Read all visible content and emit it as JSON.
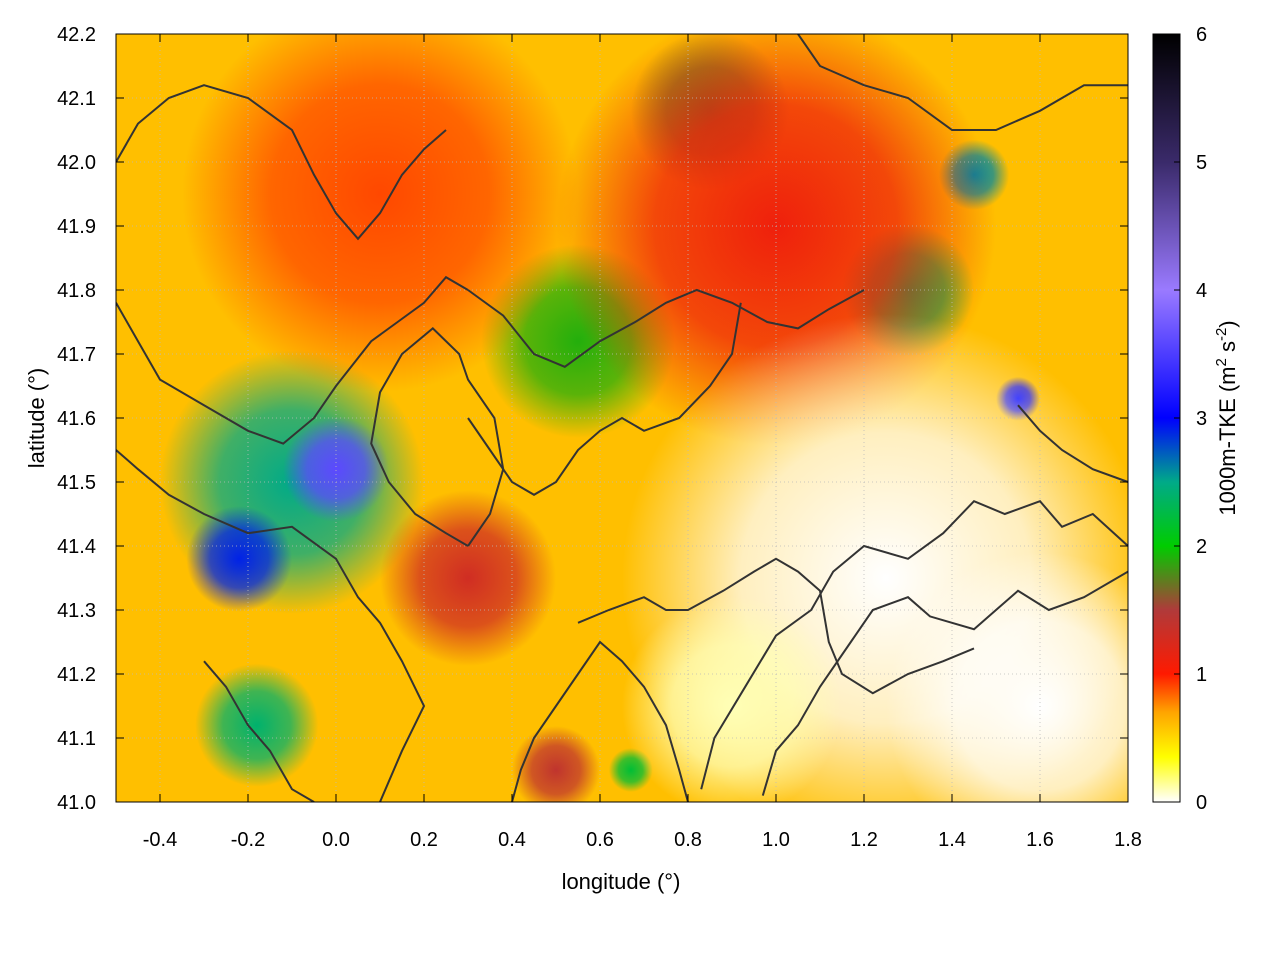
{
  "chart_data": {
    "type": "heatmap",
    "title": "",
    "xlabel": "longitude (°)",
    "ylabel": "latitude (°)",
    "xlim": [
      -0.5,
      1.8
    ],
    "ylim": [
      41.0,
      42.2
    ],
    "x_ticks": [
      -0.4,
      -0.2,
      0.0,
      0.2,
      0.4,
      0.6,
      0.8,
      1.0,
      1.2,
      1.4,
      1.6,
      1.8
    ],
    "x_tick_labels": [
      "-0.4",
      "-0.2",
      "0.0",
      "0.2",
      "0.4",
      "0.6",
      "0.8",
      "1.0",
      "1.2",
      "1.4",
      "1.6",
      "1.8"
    ],
    "y_ticks": [
      41.0,
      41.1,
      41.2,
      41.3,
      41.4,
      41.5,
      41.6,
      41.7,
      41.8,
      41.9,
      42.0,
      42.1,
      42.2
    ],
    "y_tick_labels": [
      "41.0",
      "41.1",
      "41.2",
      "41.3",
      "41.4",
      "41.5",
      "41.6",
      "41.7",
      "41.8",
      "41.9",
      "42.0",
      "42.1",
      "42.2"
    ],
    "grid": true,
    "colorbar": {
      "label": "1000m-TKE (m² s⁻²)",
      "label_main": "1000m-TKE (m",
      "label_sup1": "2",
      "label_mid": " s",
      "label_sup2": "-2",
      "label_end": ")",
      "range": [
        0,
        6
      ],
      "ticks": [
        0,
        1,
        2,
        3,
        4,
        5,
        6
      ],
      "tick_labels": [
        "0",
        "1",
        "2",
        "3",
        "4",
        "5",
        "6"
      ],
      "stops": [
        {
          "v": 0.0,
          "color": "#ffffff"
        },
        {
          "v": 0.35,
          "color": "#ffff00"
        },
        {
          "v": 0.7,
          "color": "#ffa500"
        },
        {
          "v": 1.0,
          "color": "#ff1a00"
        },
        {
          "v": 1.5,
          "color": "#b03a3a"
        },
        {
          "v": 2.0,
          "color": "#00cc00"
        },
        {
          "v": 2.5,
          "color": "#00aa88"
        },
        {
          "v": 3.0,
          "color": "#0000ff"
        },
        {
          "v": 4.0,
          "color": "#9a7aff"
        },
        {
          "v": 5.0,
          "color": "#3a2a6a"
        },
        {
          "v": 6.0,
          "color": "#000000"
        }
      ]
    },
    "field_blobs": [
      {
        "x": -0.1,
        "y": 41.5,
        "r": 0.3,
        "value": 2.5
      },
      {
        "x": 0.0,
        "y": 41.52,
        "r": 0.12,
        "value": 3.6
      },
      {
        "x": -0.22,
        "y": 41.38,
        "r": 0.12,
        "value": 2.9
      },
      {
        "x": -0.18,
        "y": 41.12,
        "r": 0.14,
        "value": 2.4
      },
      {
        "x": 0.55,
        "y": 41.72,
        "r": 0.22,
        "value": 1.9
      },
      {
        "x": 1.3,
        "y": 41.8,
        "r": 0.15,
        "value": 2.3
      },
      {
        "x": 1.45,
        "y": 41.98,
        "r": 0.08,
        "value": 2.6
      },
      {
        "x": 0.85,
        "y": 42.08,
        "r": 0.18,
        "value": 1.7
      },
      {
        "x": 1.55,
        "y": 41.63,
        "r": 0.05,
        "value": 3.0
      },
      {
        "x": 0.1,
        "y": 41.95,
        "r": 0.45,
        "value": 0.9
      },
      {
        "x": 1.0,
        "y": 41.9,
        "r": 0.5,
        "value": 1.1
      },
      {
        "x": 0.3,
        "y": 41.35,
        "r": 0.2,
        "value": 1.3
      },
      {
        "x": 0.5,
        "y": 41.05,
        "r": 0.1,
        "value": 1.4
      },
      {
        "x": 0.67,
        "y": 41.05,
        "r": 0.05,
        "value": 2.2
      },
      {
        "x": 1.25,
        "y": 41.35,
        "r": 0.6,
        "value": 0.0
      },
      {
        "x": 1.6,
        "y": 41.15,
        "r": 0.35,
        "value": 0.0
      },
      {
        "x": 0.9,
        "y": 41.15,
        "r": 0.25,
        "value": 0.1
      }
    ],
    "contours": [
      [
        [
          0.97,
          41.01
        ],
        [
          1.0,
          41.08
        ],
        [
          1.05,
          41.12
        ],
        [
          1.1,
          41.18
        ],
        [
          1.17,
          41.25
        ],
        [
          1.22,
          41.3
        ],
        [
          1.3,
          41.32
        ],
        [
          1.35,
          41.29
        ],
        [
          1.45,
          41.27
        ],
        [
          1.5,
          41.3
        ],
        [
          1.55,
          41.33
        ],
        [
          1.62,
          41.3
        ],
        [
          1.7,
          41.32
        ],
        [
          1.8,
          41.36
        ]
      ],
      [
        [
          0.83,
          41.02
        ],
        [
          0.86,
          41.1
        ],
        [
          0.93,
          41.18
        ],
        [
          1.0,
          41.26
        ],
        [
          1.08,
          41.3
        ],
        [
          1.13,
          41.36
        ],
        [
          1.2,
          41.4
        ],
        [
          1.3,
          41.38
        ],
        [
          1.38,
          41.42
        ],
        [
          1.45,
          41.47
        ],
        [
          1.52,
          41.45
        ],
        [
          1.6,
          41.47
        ],
        [
          1.65,
          41.43
        ],
        [
          1.72,
          41.45
        ],
        [
          1.8,
          41.4
        ]
      ],
      [
        [
          0.55,
          41.28
        ],
        [
          0.62,
          41.3
        ],
        [
          0.7,
          41.32
        ],
        [
          0.75,
          41.3
        ],
        [
          0.8,
          41.3
        ],
        [
          0.88,
          41.33
        ],
        [
          0.95,
          41.36
        ],
        [
          1.0,
          41.38
        ],
        [
          1.05,
          41.36
        ],
        [
          1.1,
          41.33
        ],
        [
          1.12,
          41.25
        ],
        [
          1.15,
          41.2
        ],
        [
          1.22,
          41.17
        ],
        [
          1.3,
          41.2
        ],
        [
          1.38,
          41.22
        ],
        [
          1.45,
          41.24
        ]
      ],
      [
        [
          0.1,
          41.0
        ],
        [
          0.15,
          41.08
        ],
        [
          0.2,
          41.15
        ],
        [
          0.15,
          41.22
        ],
        [
          0.1,
          41.28
        ],
        [
          0.05,
          41.32
        ],
        [
          0.0,
          41.38
        ],
        [
          -0.1,
          41.43
        ],
        [
          -0.2,
          41.42
        ],
        [
          -0.3,
          41.45
        ],
        [
          -0.38,
          41.48
        ],
        [
          -0.45,
          41.52
        ],
        [
          -0.5,
          41.55
        ]
      ],
      [
        [
          -0.5,
          41.78
        ],
        [
          -0.45,
          41.72
        ],
        [
          -0.4,
          41.66
        ],
        [
          -0.3,
          41.62
        ],
        [
          -0.2,
          41.58
        ],
        [
          -0.12,
          41.56
        ],
        [
          -0.05,
          41.6
        ],
        [
          0.0,
          41.65
        ],
        [
          0.08,
          41.72
        ],
        [
          0.14,
          41.75
        ],
        [
          0.2,
          41.78
        ],
        [
          0.25,
          41.82
        ],
        [
          0.3,
          41.8
        ]
      ],
      [
        [
          0.3,
          41.8
        ],
        [
          0.38,
          41.76
        ],
        [
          0.45,
          41.7
        ],
        [
          0.52,
          41.68
        ],
        [
          0.6,
          41.72
        ],
        [
          0.68,
          41.75
        ],
        [
          0.75,
          41.78
        ],
        [
          0.82,
          41.8
        ],
        [
          0.9,
          41.78
        ],
        [
          0.98,
          41.75
        ],
        [
          1.05,
          41.74
        ],
        [
          1.12,
          41.77
        ],
        [
          1.2,
          41.8
        ]
      ],
      [
        [
          -0.5,
          42.0
        ],
        [
          -0.45,
          42.06
        ],
        [
          -0.38,
          42.1
        ],
        [
          -0.3,
          42.12
        ],
        [
          -0.2,
          42.1
        ],
        [
          -0.1,
          42.05
        ],
        [
          -0.05,
          41.98
        ],
        [
          0.0,
          41.92
        ],
        [
          0.05,
          41.88
        ],
        [
          0.1,
          41.92
        ],
        [
          0.15,
          41.98
        ],
        [
          0.2,
          42.02
        ],
        [
          0.25,
          42.05
        ]
      ],
      [
        [
          0.3,
          41.6
        ],
        [
          0.35,
          41.55
        ],
        [
          0.4,
          41.5
        ],
        [
          0.45,
          41.48
        ],
        [
          0.5,
          41.5
        ],
        [
          0.55,
          41.55
        ],
        [
          0.6,
          41.58
        ],
        [
          0.65,
          41.6
        ],
        [
          0.7,
          41.58
        ],
        [
          0.78,
          41.6
        ],
        [
          0.85,
          41.65
        ],
        [
          0.9,
          41.7
        ],
        [
          0.92,
          41.78
        ]
      ],
      [
        [
          0.3,
          41.4
        ],
        [
          0.35,
          41.45
        ],
        [
          0.38,
          41.52
        ],
        [
          0.36,
          41.6
        ],
        [
          0.3,
          41.66
        ],
        [
          0.28,
          41.7
        ],
        [
          0.22,
          41.74
        ],
        [
          0.15,
          41.7
        ],
        [
          0.1,
          41.64
        ],
        [
          0.08,
          41.56
        ],
        [
          0.12,
          41.5
        ],
        [
          0.18,
          41.45
        ],
        [
          0.25,
          41.42
        ],
        [
          0.3,
          41.4
        ]
      ],
      [
        [
          1.05,
          42.2
        ],
        [
          1.1,
          42.15
        ],
        [
          1.2,
          42.12
        ],
        [
          1.3,
          42.1
        ],
        [
          1.4,
          42.05
        ],
        [
          1.5,
          42.05
        ],
        [
          1.6,
          42.08
        ],
        [
          1.7,
          42.12
        ],
        [
          1.8,
          42.12
        ]
      ],
      [
        [
          1.55,
          41.62
        ],
        [
          1.6,
          41.58
        ],
        [
          1.65,
          41.55
        ],
        [
          1.72,
          41.52
        ],
        [
          1.8,
          41.5
        ]
      ],
      [
        [
          -0.3,
          41.22
        ],
        [
          -0.25,
          41.18
        ],
        [
          -0.2,
          41.12
        ],
        [
          -0.15,
          41.08
        ],
        [
          -0.1,
          41.02
        ],
        [
          -0.05,
          41.0
        ]
      ],
      [
        [
          0.4,
          41.0
        ],
        [
          0.42,
          41.05
        ],
        [
          0.45,
          41.1
        ],
        [
          0.5,
          41.15
        ],
        [
          0.55,
          41.2
        ],
        [
          0.6,
          41.25
        ],
        [
          0.65,
          41.22
        ],
        [
          0.7,
          41.18
        ],
        [
          0.75,
          41.12
        ],
        [
          0.78,
          41.05
        ],
        [
          0.8,
          41.0
        ]
      ]
    ]
  }
}
